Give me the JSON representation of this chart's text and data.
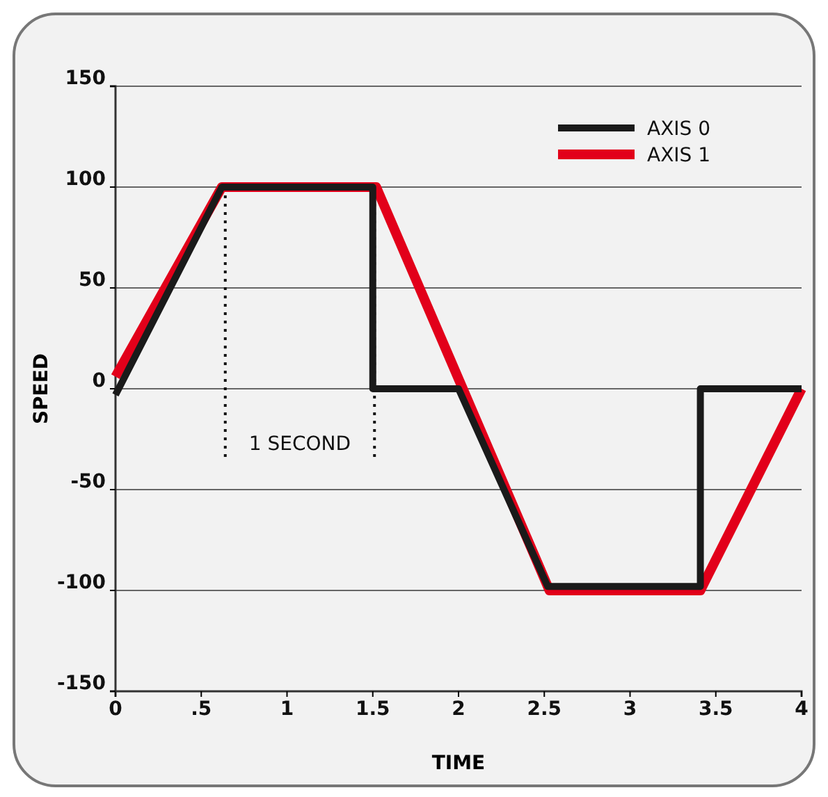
{
  "chart_data": {
    "type": "line",
    "xlabel": "TIME",
    "ylabel": "SPEED",
    "xlim": [
      0,
      4
    ],
    "xticks": [
      0,
      {
        "value": 0.5,
        "label": ".5"
      },
      1,
      1.5,
      2,
      2.5,
      3,
      3.5,
      4
    ],
    "ylim": [
      -150,
      150
    ],
    "yticks": [
      -150,
      -100,
      -50,
      0,
      50,
      100,
      150
    ],
    "grid": "y",
    "legend": "top right",
    "line_style": "solid",
    "series": [
      {
        "name": "AXIS 0",
        "color": "#1a1a1a",
        "x": [
          0,
          0.62,
          1.5,
          1.5,
          2.0,
          2.52,
          3.41,
          3.41,
          4
        ],
        "values": [
          -3,
          100,
          100,
          0,
          0,
          -98,
          -98,
          0,
          0
        ]
      },
      {
        "name": "AXIS 1",
        "color": "#e2001a",
        "x": [
          0,
          0.62,
          1.52,
          2.53,
          3.41,
          4
        ],
        "values": [
          6,
          100,
          100,
          -100,
          -100,
          0
        ]
      }
    ],
    "ref_lines": [
      {
        "axis": "x",
        "value": 0.64,
        "line_style": "dotted"
      },
      {
        "axis": "x",
        "value": 1.51,
        "line_style": "dotted"
      }
    ],
    "annotations": [
      "1 SECOND"
    ]
  }
}
